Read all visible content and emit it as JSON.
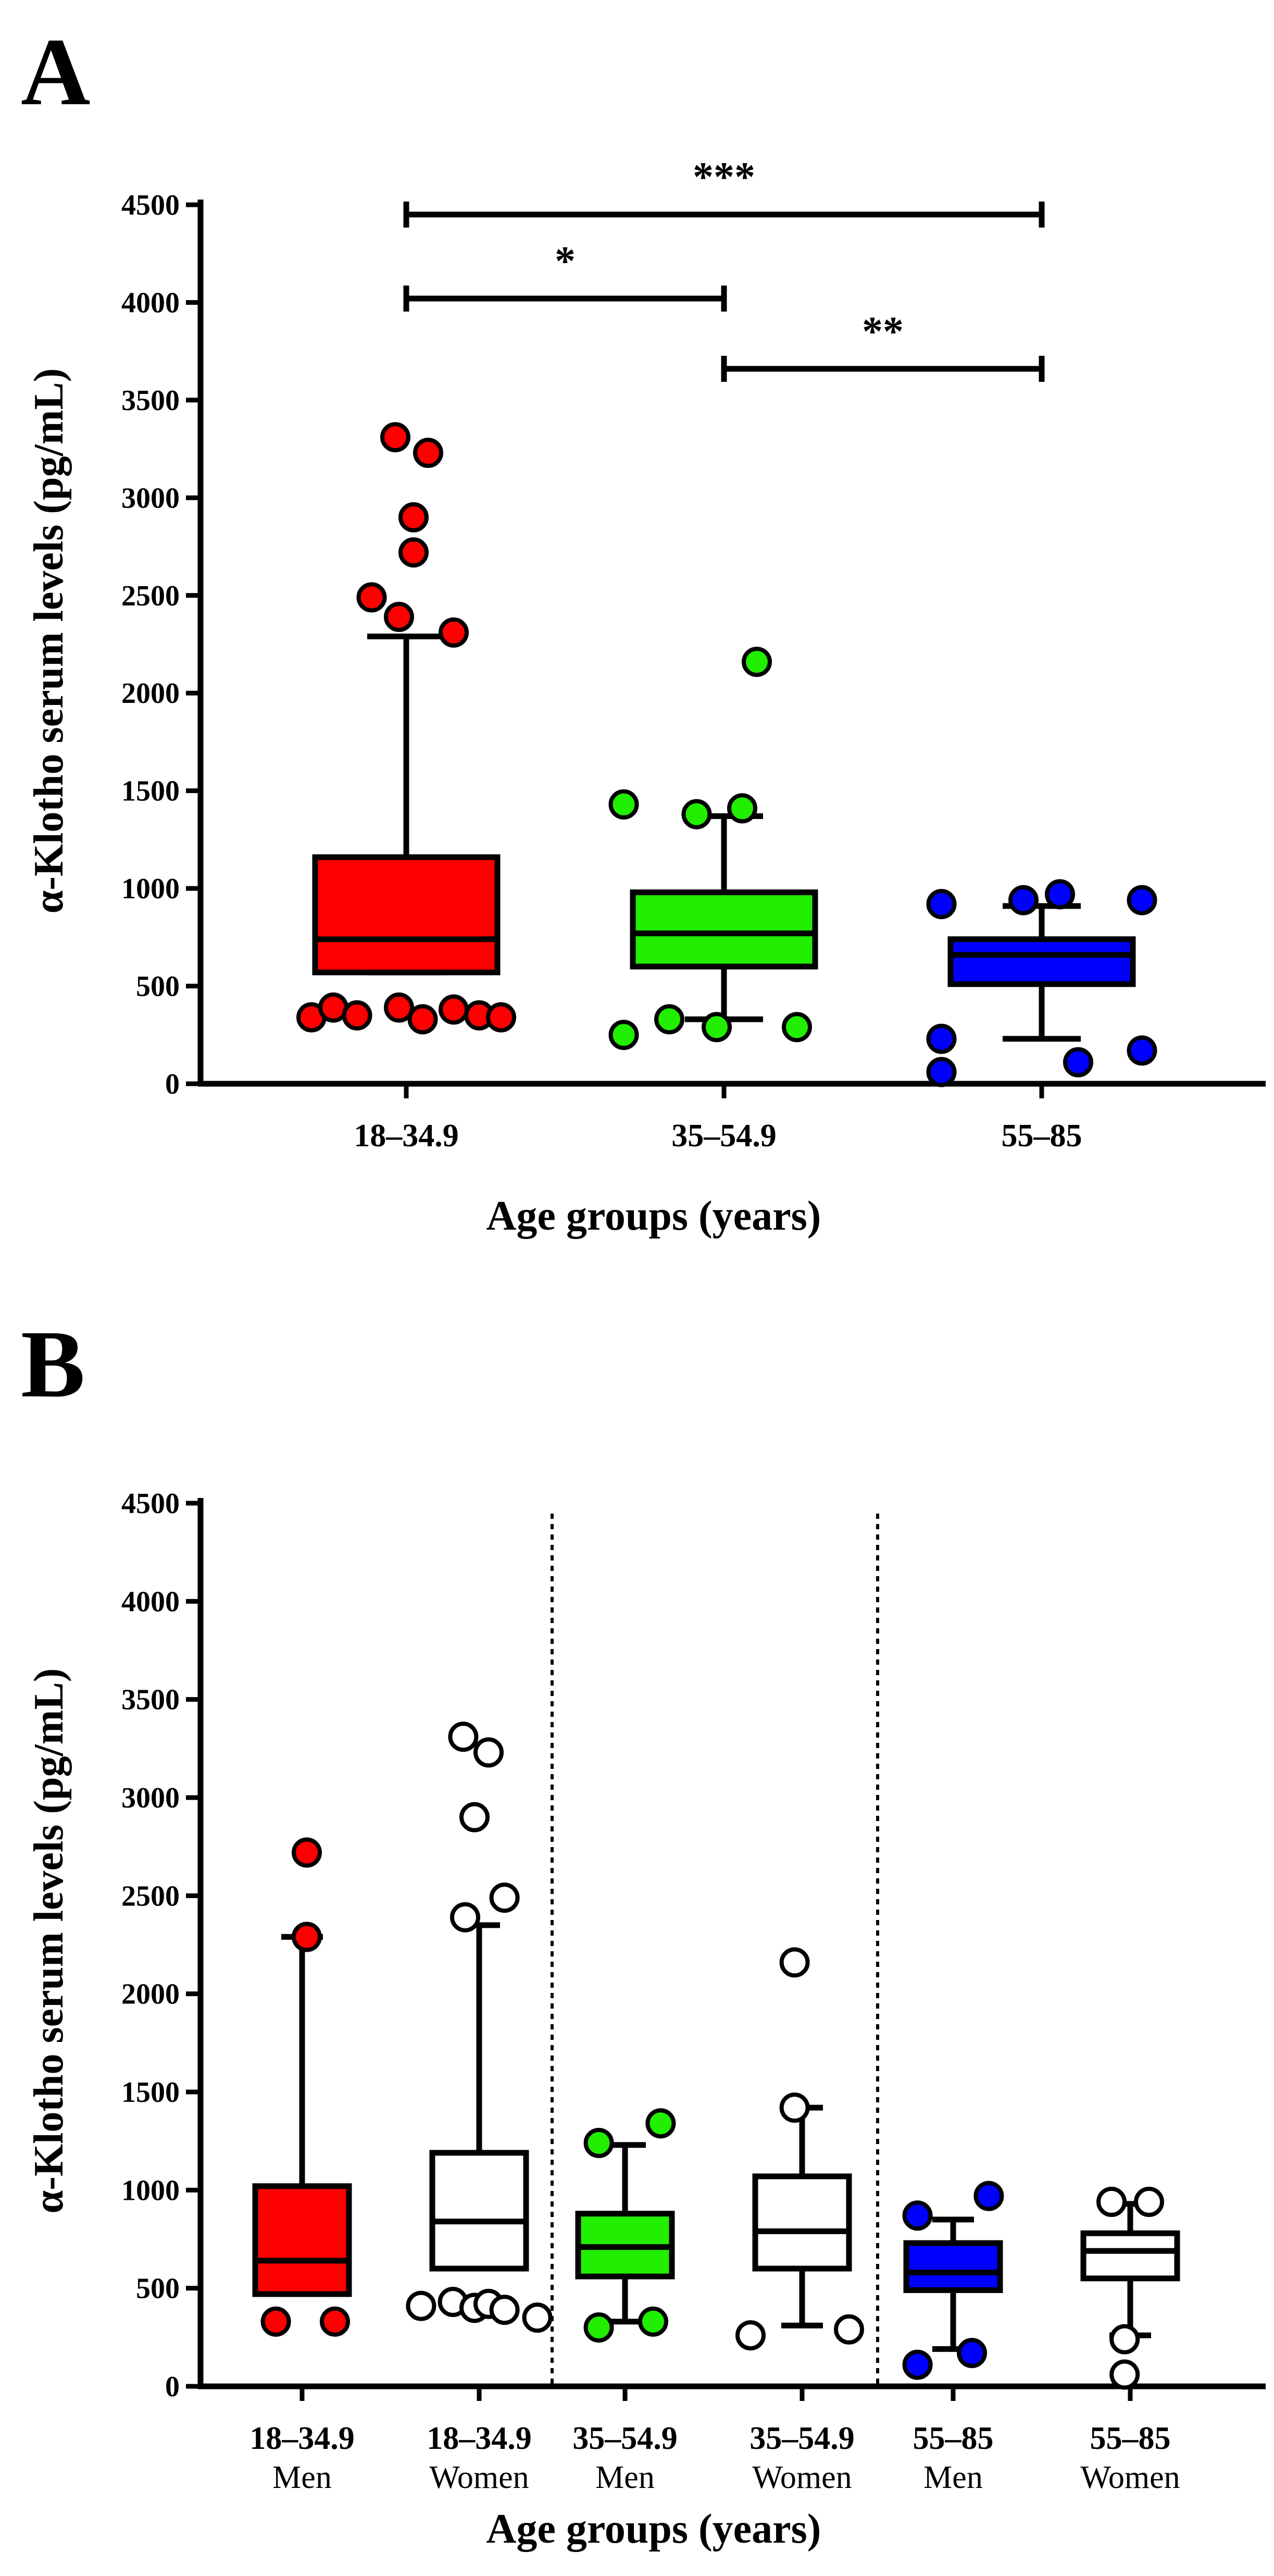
{
  "chart_data": [
    {
      "panel": "A",
      "type": "box",
      "ylabel": "α-Klotho serum levels (pg/mL)",
      "xlabel": "Age groups (years)",
      "ylim": [
        0,
        4500
      ],
      "yticks": [
        0,
        500,
        1000,
        1500,
        2000,
        2500,
        3000,
        3500,
        4000,
        4500
      ],
      "groups": [
        {
          "label": "18–34.9",
          "sublabel": "",
          "color": "#ff0000",
          "whisker_low": 570,
          "q1": 570,
          "median": 740,
          "q3": 1160,
          "whisker_high": 2290,
          "outliers": [
            3310,
            3230,
            2900,
            2720,
            2490,
            2390,
            2310,
            340,
            390,
            350,
            390,
            330,
            380,
            350,
            340
          ],
          "outlier_offsets": [
            -0.06,
            0.12,
            0.04,
            0.04,
            -0.19,
            -0.04,
            0.26,
            -0.52,
            -0.4,
            -0.27,
            -0.04,
            0.09,
            0.26,
            0.4,
            0.52
          ]
        },
        {
          "label": "35–54.9",
          "sublabel": "",
          "color": "#22ee00",
          "whisker_low": 330,
          "q1": 600,
          "median": 770,
          "q3": 980,
          "whisker_high": 1370,
          "outliers": [
            2160,
            1430,
            1380,
            1410,
            250,
            330,
            290,
            290
          ],
          "outlier_offsets": [
            0.18,
            -0.55,
            -0.15,
            0.1,
            -0.55,
            -0.3,
            -0.04,
            0.4
          ]
        },
        {
          "label": "55–85",
          "sublabel": "",
          "color": "#0000ff",
          "whisker_low": 230,
          "q1": 510,
          "median": 660,
          "q3": 740,
          "whisker_high": 910,
          "outliers": [
            920,
            940,
            970,
            940,
            230,
            60,
            110,
            170
          ],
          "outlier_offsets": [
            -0.55,
            -0.1,
            0.1,
            0.55,
            -0.55,
            -0.55,
            0.2,
            0.55
          ]
        }
      ],
      "significance": [
        {
          "from": 0,
          "to": 2,
          "value": 4450,
          "label": "***"
        },
        {
          "from": 0,
          "to": 1,
          "value": 4020,
          "label": "*"
        },
        {
          "from": 1,
          "to": 2,
          "value": 3660,
          "label": "**"
        }
      ]
    },
    {
      "panel": "B",
      "type": "box",
      "ylabel": "α-Klotho serum levels (pg/mL)",
      "xlabel": "Age groups (years)",
      "ylim": [
        0,
        4500
      ],
      "yticks": [
        0,
        500,
        1000,
        1500,
        2000,
        2500,
        3000,
        3500,
        4000,
        4500
      ],
      "groups": [
        {
          "label": "18–34.9",
          "sublabel": "Men",
          "color": "#ff0000",
          "whisker_low": 470,
          "q1": 470,
          "median": 640,
          "q3": 1020,
          "whisker_high": 2290,
          "outliers": [
            2720,
            2290,
            330,
            330
          ],
          "outlier_offsets": [
            0.05,
            0.05,
            -0.28,
            0.35
          ]
        },
        {
          "label": "18–34.9",
          "sublabel": "Women",
          "color": "#ffffff",
          "whisker_low": 600,
          "q1": 600,
          "median": 840,
          "q3": 1190,
          "whisker_high": 2350,
          "outliers": [
            3310,
            3230,
            2900,
            2490,
            2390,
            410,
            430,
            400,
            420,
            390,
            350
          ],
          "outlier_offsets": [
            -0.17,
            0.1,
            -0.05,
            0.27,
            -0.15,
            -0.62,
            -0.28,
            -0.05,
            0.1,
            0.27,
            0.62
          ]
        },
        {
          "label": "35–54.9",
          "sublabel": "Men",
          "color": "#22ee00",
          "whisker_low": 330,
          "q1": 560,
          "median": 710,
          "q3": 880,
          "whisker_high": 1230,
          "outliers": [
            1240,
            1340,
            300,
            330
          ],
          "outlier_offsets": [
            -0.28,
            0.38,
            -0.28,
            0.3
          ]
        },
        {
          "label": "35–54.9",
          "sublabel": "Women",
          "color": "#ffffff",
          "whisker_low": 310,
          "q1": 600,
          "median": 790,
          "q3": 1070,
          "whisker_high": 1420,
          "outliers": [
            2160,
            1420,
            260,
            290
          ],
          "outlier_offsets": [
            -0.08,
            -0.08,
            -0.55,
            0.5
          ]
        },
        {
          "label": "55–85",
          "sublabel": "Men",
          "color": "#0000ff",
          "whisker_low": 190,
          "q1": 490,
          "median": 580,
          "q3": 730,
          "whisker_high": 850,
          "outliers": [
            870,
            970,
            110,
            170
          ],
          "outlier_offsets": [
            -0.38,
            0.38,
            -0.38,
            0.2
          ]
        },
        {
          "label": "55–85",
          "sublabel": "Women",
          "color": "#ffffff",
          "whisker_low": 260,
          "q1": 550,
          "median": 690,
          "q3": 780,
          "whisker_high": 930,
          "outliers": [
            940,
            940,
            240,
            60
          ],
          "outlier_offsets": [
            -0.2,
            0.2,
            -0.06,
            -0.06
          ]
        }
      ],
      "separators_after": [
        1,
        3
      ]
    }
  ]
}
